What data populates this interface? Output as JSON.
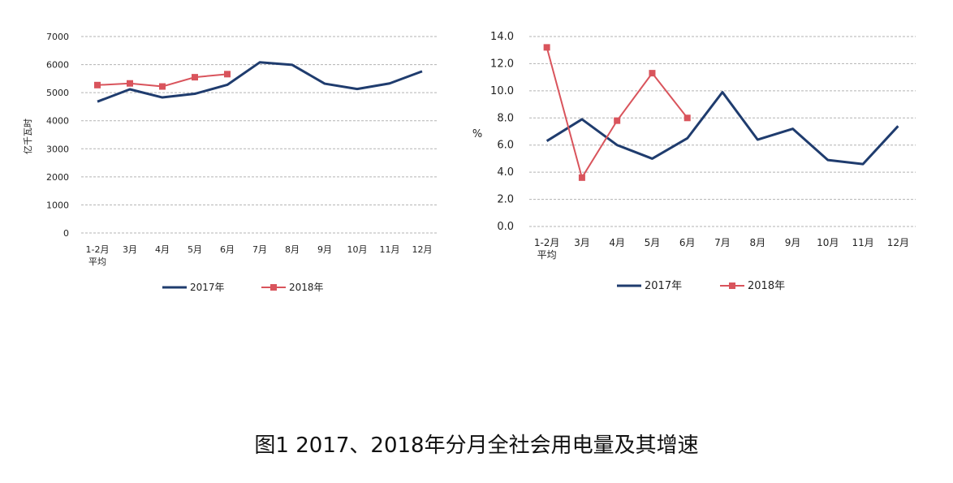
{
  "colors": {
    "series_2017": "#1f3c6e",
    "series_2018": "#d9545c",
    "grid": "#b3b3b3",
    "text": "#222222"
  },
  "caption": "图1 2017、2018年分月全社会用电量及其增速",
  "chart_data": [
    {
      "type": "line",
      "title": "",
      "ylabel": "亿千瓦时",
      "xlabel": "",
      "ylim": [
        0,
        7000
      ],
      "grid": true,
      "legend_position": "bottom",
      "yticks": [
        "0",
        "1000",
        "2000",
        "3000",
        "4000",
        "5000",
        "6000",
        "7000"
      ],
      "categories": [
        [
          "1-2月",
          "平均"
        ],
        [
          "3月"
        ],
        [
          "4月"
        ],
        [
          "5月"
        ],
        [
          "6月"
        ],
        [
          "7月"
        ],
        [
          "8月"
        ],
        [
          "9月"
        ],
        [
          "10月"
        ],
        [
          "11月"
        ],
        [
          "12月"
        ]
      ],
      "series": [
        {
          "name": "2017年",
          "marker": "none",
          "values": [
            4680,
            5120,
            4830,
            4960,
            5280,
            6080,
            5990,
            5320,
            5130,
            5330,
            5760
          ]
        },
        {
          "name": "2018年",
          "marker": "square",
          "values": [
            5270,
            5330,
            5220,
            5550,
            5660,
            null,
            null,
            null,
            null,
            null,
            null
          ]
        }
      ]
    },
    {
      "type": "line",
      "title": "",
      "ylabel": "%",
      "xlabel": "",
      "ylim": [
        0,
        14
      ],
      "grid": true,
      "legend_position": "bottom",
      "yticks": [
        "0.0",
        "2.0",
        "4.0",
        "6.0",
        "8.0",
        "10.0",
        "12.0",
        "14.0"
      ],
      "categories": [
        [
          "1-2月",
          "平均"
        ],
        [
          "3月"
        ],
        [
          "4月"
        ],
        [
          "5月"
        ],
        [
          "6月"
        ],
        [
          "7月"
        ],
        [
          "8月"
        ],
        [
          "9月"
        ],
        [
          "10月"
        ],
        [
          "11月"
        ],
        [
          "12月"
        ]
      ],
      "series": [
        {
          "name": "2017年",
          "marker": "none",
          "values": [
            6.3,
            7.9,
            6.0,
            5.0,
            6.5,
            9.9,
            6.4,
            7.2,
            4.9,
            4.6,
            7.4
          ]
        },
        {
          "name": "2018年",
          "marker": "square",
          "values": [
            13.2,
            3.6,
            7.8,
            11.3,
            8.0,
            null,
            null,
            null,
            null,
            null,
            null
          ]
        }
      ]
    }
  ]
}
